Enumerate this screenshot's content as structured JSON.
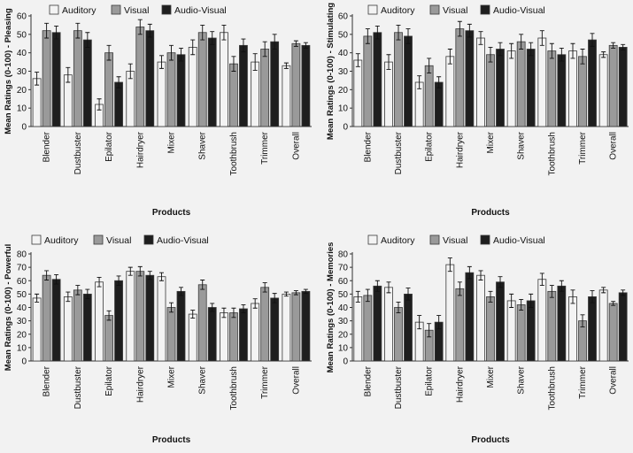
{
  "colors": {
    "background": "#f2f2f2",
    "auditory": "#f3f3f3",
    "visual": "#9a9a9a",
    "audio_visual": "#1e1e1e",
    "axis": "#333333"
  },
  "chart_data": [
    {
      "type": "bar",
      "categories": [
        "Blender",
        "Dustbuster",
        "Epilator",
        "Hairdryer",
        "Mixer",
        "Shaver",
        "Toothbrush",
        "Trimmer",
        "Overall"
      ],
      "series": [
        {
          "name": "Auditory",
          "values": [
            26,
            28,
            12,
            30,
            35,
            43,
            51,
            35,
            33
          ],
          "errors": [
            3.5,
            4,
            3,
            4,
            3.5,
            4,
            4,
            4.5,
            1.5
          ]
        },
        {
          "name": "Visual",
          "values": [
            52,
            52,
            40,
            54,
            40,
            51,
            34,
            42,
            45
          ],
          "errors": [
            4,
            4,
            4,
            4,
            4,
            4,
            4,
            4,
            1.5
          ]
        },
        {
          "name": "Audio-Visual",
          "values": [
            51,
            47,
            24,
            52,
            39,
            48,
            44,
            46,
            44
          ],
          "errors": [
            3.5,
            4,
            3,
            3.5,
            3.5,
            3.5,
            3.5,
            4,
            1.5
          ]
        }
      ],
      "xlabel": "Products",
      "ylabel": "Mean Ratings (0-100) - Pleasing",
      "ylim": [
        0,
        60
      ],
      "yticks": [
        0,
        10,
        20,
        30,
        40,
        50,
        60
      ],
      "legend_position": "top",
      "grid": false
    },
    {
      "type": "bar",
      "categories": [
        "Blender",
        "Dustbuster",
        "Epilator",
        "Hairdryer",
        "Mixer",
        "Shaver",
        "Toothbrush",
        "Trimmer",
        "Overall"
      ],
      "series": [
        {
          "name": "Auditory",
          "values": [
            36,
            35,
            24,
            38,
            48,
            41,
            48,
            41,
            39
          ],
          "errors": [
            3.5,
            4,
            3.5,
            4,
            3.5,
            4,
            4,
            4,
            1.5
          ]
        },
        {
          "name": "Visual",
          "values": [
            49,
            51,
            33,
            53,
            39,
            46,
            41,
            38,
            44
          ],
          "errors": [
            4,
            4,
            4,
            4,
            4,
            4,
            4,
            4,
            1.5
          ]
        },
        {
          "name": "Audio-Visual",
          "values": [
            51,
            49,
            24,
            52,
            42,
            42,
            39,
            47,
            43
          ],
          "errors": [
            3.5,
            4,
            3,
            3.5,
            3.5,
            3.5,
            3.5,
            3.5,
            1.5
          ]
        }
      ],
      "xlabel": "Products",
      "ylabel": "Mean Ratings (0-100) - Stimulating",
      "ylim": [
        0,
        60
      ],
      "yticks": [
        0,
        10,
        20,
        30,
        40,
        50,
        60
      ],
      "legend_position": "top",
      "grid": false
    },
    {
      "type": "bar",
      "categories": [
        "Blender",
        "Dustbuster",
        "Epilator",
        "Hairdryer",
        "Mixer",
        "Shaver",
        "Toothbrush",
        "Trimmer",
        "Overall"
      ],
      "series": [
        {
          "name": "Auditory",
          "values": [
            47,
            48,
            59,
            67,
            63,
            35,
            36,
            43,
            50
          ],
          "errors": [
            3,
            3.5,
            3.5,
            3,
            3,
            3,
            3.5,
            3.5,
            1.5
          ]
        },
        {
          "name": "Visual",
          "values": [
            64,
            53,
            34,
            67,
            40,
            57,
            36,
            55,
            51
          ],
          "errors": [
            3.5,
            3.5,
            3.5,
            3.5,
            3.5,
            3.5,
            3.5,
            3.5,
            1.5
          ]
        },
        {
          "name": "Audio-Visual",
          "values": [
            61,
            50,
            60,
            64,
            52,
            40,
            39,
            47,
            52
          ],
          "errors": [
            3.5,
            3.5,
            3.5,
            3,
            3,
            3,
            3,
            3.5,
            1.5
          ]
        }
      ],
      "xlabel": "Products",
      "ylabel": "Mean Ratings (0-100) - Powerful",
      "ylim": [
        0,
        80
      ],
      "yticks": [
        0,
        10,
        20,
        30,
        40,
        50,
        60,
        70,
        80
      ],
      "legend_position": "top",
      "grid": false
    },
    {
      "type": "bar",
      "categories": [
        "Blender",
        "Dustbuster",
        "Epilator",
        "Hairdryer",
        "Mixer",
        "Shaver",
        "Toothbrush",
        "Trimmer",
        "Overall"
      ],
      "series": [
        {
          "name": "Auditory",
          "values": [
            48,
            55,
            29,
            72,
            64,
            45,
            61,
            48,
            53
          ],
          "errors": [
            4,
            4,
            5,
            5,
            3.5,
            5,
            4.5,
            5,
            2
          ]
        },
        {
          "name": "Visual",
          "values": [
            49,
            40,
            23,
            54,
            48,
            42,
            52,
            30,
            43
          ],
          "errors": [
            4.5,
            4,
            5,
            5,
            4,
            4,
            4.5,
            4.5,
            1.5
          ]
        },
        {
          "name": "Audio-Visual",
          "values": [
            56,
            50,
            29,
            66,
            59,
            45,
            56,
            48,
            51
          ],
          "errors": [
            4,
            4.5,
            5,
            4.5,
            4,
            5,
            4,
            4.5,
            2
          ]
        }
      ],
      "xlabel": "Products",
      "ylabel": "Mean Ratings (0-100) - Memories",
      "ylim": [
        0,
        80
      ],
      "yticks": [
        0,
        10,
        20,
        30,
        40,
        50,
        60,
        70,
        80
      ],
      "legend_position": "top",
      "grid": false
    }
  ]
}
